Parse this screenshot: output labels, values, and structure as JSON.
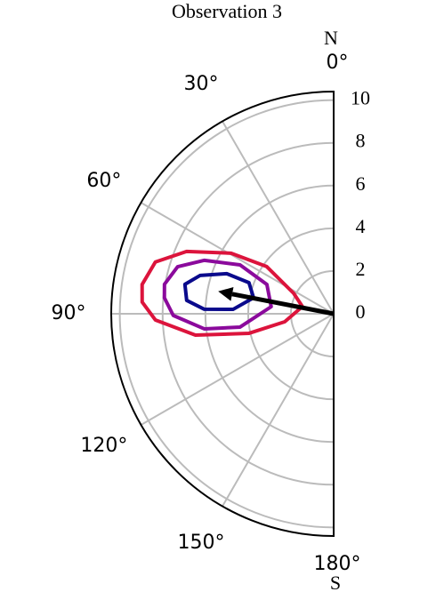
{
  "chart_data": {
    "type": "polar-contour",
    "title": "Observation 3",
    "top_label": "N",
    "bottom_label": "S",
    "rlim": [
      0,
      10.4
    ],
    "rticks": [
      0,
      2,
      4,
      6,
      8,
      10
    ],
    "thetaticks": [
      {
        "value": 0,
        "label": "0°"
      },
      {
        "value": 30,
        "label": "30°"
      },
      {
        "value": 60,
        "label": "60°"
      },
      {
        "value": 90,
        "label": "90°"
      },
      {
        "value": 120,
        "label": "120°"
      },
      {
        "value": 150,
        "label": "150°"
      },
      {
        "value": 180,
        "label": "180°"
      }
    ],
    "grid": true,
    "series": [
      {
        "color": "#dc143c",
        "theta": [
          81.3,
          73.8,
          67,
          59.4,
          54.8,
          62.9,
          77,
          99.3,
          103,
          98.8,
          92,
          86.5
        ],
        "r": [
          9.06,
          8.68,
          7.47,
          5.57,
          3.83,
          2.1,
          1.5,
          2.32,
          4.06,
          6.54,
          8.34,
          8.97
        ]
      },
      {
        "color": "#8b0a9c",
        "theta": [
          80.1,
          73.2,
          67.5,
          62.4,
          66.3,
          83.5,
          98.1,
          96.7,
          90.6,
          84.6
        ],
        "r": [
          8.03,
          7.62,
          6.54,
          4.94,
          3.41,
          2.94,
          4.42,
          6.08,
          7.5,
          7.95
        ]
      },
      {
        "color": "#0a0a8c",
        "theta": [
          78.8,
          74,
          69.4,
          69.8,
          78.7,
          87.5,
          88,
          84.8
        ],
        "r": [
          7.09,
          6.5,
          5.34,
          4.22,
          3.82,
          4.71,
          6.05,
          6.9
        ]
      }
    ],
    "arrow": {
      "theta": 79,
      "r": 5.5,
      "color": "#000000"
    }
  }
}
